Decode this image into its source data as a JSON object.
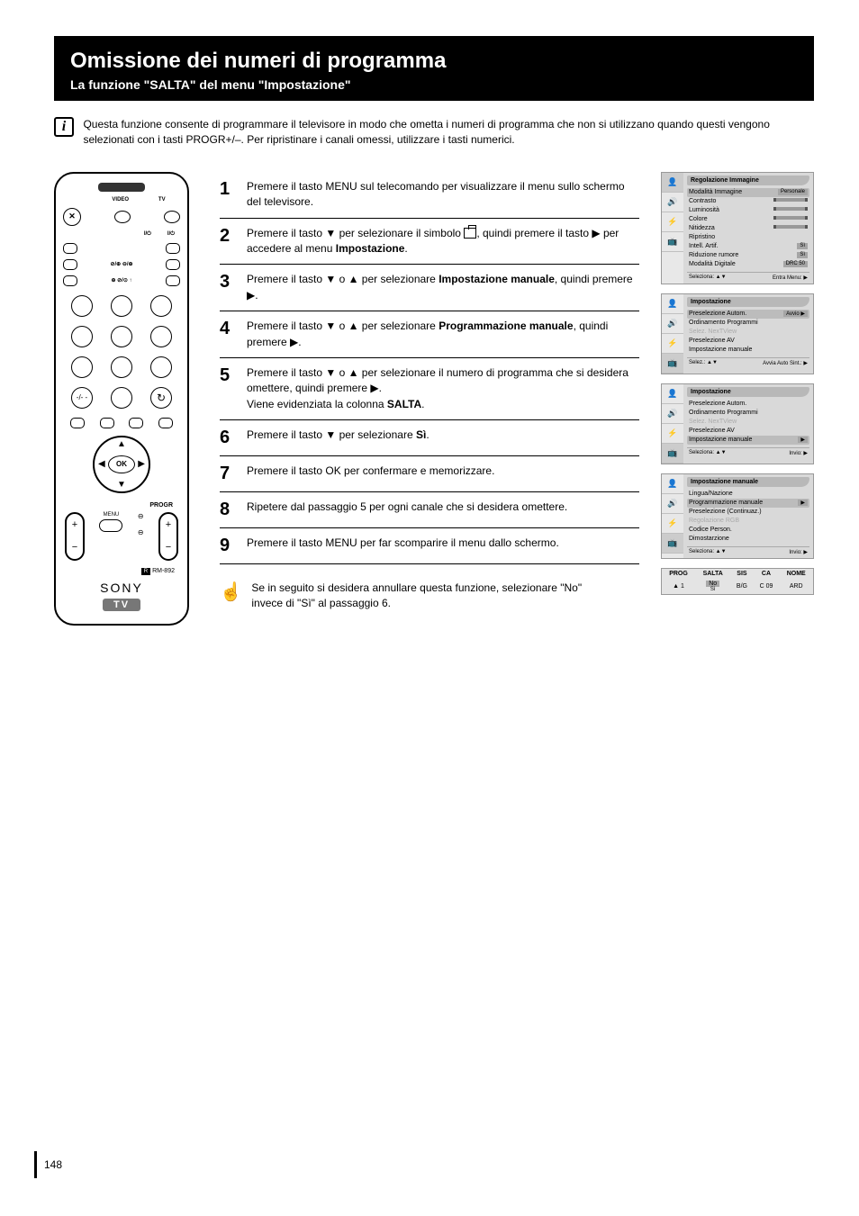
{
  "header": {
    "title": "Omissione dei numeri di programma",
    "subtitle": "La funzione \"SALTA\" del menu \"Impostazione\""
  },
  "intro": "Questa funzione consente di programmare il televisore in modo che ometta i numeri di programma che non si utilizzano quando questi vengono selezionati con i tasti PROGR+/–. Per ripristinare i canali omessi, utilizzare i tasti numerici.",
  "steps": [
    {
      "n": "1",
      "text": "Premere il tasto MENU sul telecomando per visualizzare il menu sullo schermo del televisore."
    },
    {
      "n": "2",
      "html": "Premere il tasto ▼ per selezionare il simbolo <ico>, quindi premere il tasto ▶ per accedere al menu <b>Impostazione</b>."
    },
    {
      "n": "3",
      "html": "Premere il tasto ▼ o ▲ per selezionare <b>Impostazione manuale</b>, quindi premere ▶."
    },
    {
      "n": "4",
      "html": "Premere il tasto ▼ o ▲ per selezionare <b>Programmazione manuale</b>, quindi premere ▶."
    },
    {
      "n": "5",
      "html": "Premere il tasto ▼ o ▲ per selezionare il numero di programma che si desidera omettere, quindi premere ▶.<br>Viene evidenziata la colonna <b>SALTA</b>."
    },
    {
      "n": "6",
      "html": "Premere il tasto ▼ per selezionare <b>Sì</b>."
    },
    {
      "n": "7",
      "text": "Premere il tasto OK per confermare e memorizzare."
    },
    {
      "n": "8",
      "text": "Ripetere dal passaggio 5 per ogni canale che si desidera omettere."
    },
    {
      "n": "9",
      "text": "Premere il tasto MENU per far scomparire il menu dallo schermo."
    }
  ],
  "note": "Se in seguito si desidera annullare questa funzione, selezionare \"No\" invece di \"Sì\" al passaggio 6.",
  "remote": {
    "labels": {
      "video": "VIDEO",
      "tv": "TV",
      "menu": "MENU",
      "progr": "PROGR",
      "model": "RM-892",
      "brand": "SONY",
      "badge": "TV",
      "ok": "OK"
    }
  },
  "osd": {
    "panel1": {
      "title": "Regolazione Immagine",
      "lines": [
        {
          "l": "Modalità Immagine",
          "v": "Personale",
          "hi": true
        },
        {
          "l": "Contrasto",
          "slider": true
        },
        {
          "l": "Luminosità",
          "slider": true
        },
        {
          "l": "Colore",
          "slider": true
        },
        {
          "l": "Nitidezza",
          "slider": true
        },
        {
          "l": "Ripristino"
        },
        {
          "l": "Intell. Artif.",
          "v": "Sì"
        },
        {
          "l": "Riduzione rumore",
          "v": "Sì"
        },
        {
          "l": "Modalità Digitale",
          "v": "DRC 50"
        }
      ],
      "foot_l": "Seleziona: ▲▼",
      "foot_r": "Entra Menu: ▶"
    },
    "panel2": {
      "title": "Impostazione",
      "lines": [
        {
          "l": "Preselezione Autom.",
          "v": "Avvio ▶",
          "hi": true
        },
        {
          "l": "Ordinamento Programmi"
        },
        {
          "l": "Selez. NexTView",
          "dim": true
        },
        {
          "l": "Preselezione AV"
        },
        {
          "l": "Impostazione manuale"
        }
      ],
      "foot_l": "Selez.: ▲▼",
      "foot_r": "Avvia Auto Sint.: ▶"
    },
    "panel3": {
      "title": "Impostazione",
      "lines": [
        {
          "l": "Preselezione Autom."
        },
        {
          "l": "Ordinamento Programmi"
        },
        {
          "l": "Selez. NexTView",
          "dim": true
        },
        {
          "l": "Preselezione AV"
        },
        {
          "l": "Impostazione manuale",
          "v": "▶",
          "hi": true
        }
      ],
      "foot_l": "Seleziona: ▲▼",
      "foot_r": "Invio: ▶"
    },
    "panel4": {
      "title": "Impostazione manuale",
      "lines": [
        {
          "l": "Lingua/Nazione"
        },
        {
          "l": "Programmazione manuale",
          "v": "▶",
          "hi": true
        },
        {
          "l": "Preselezione (Continuaz.)"
        },
        {
          "l": "Regolazione RGB",
          "dim": true
        },
        {
          "l": "Codice Person."
        },
        {
          "l": "Dimostarzione"
        }
      ],
      "foot_l": "Seleziona: ▲▼",
      "foot_r": "Invio: ▶"
    },
    "table": {
      "cols": [
        "PROG",
        "SALTA",
        "SIS",
        "CA",
        "NOME"
      ],
      "row": {
        "prog": "▲ 1",
        "salta_no": "No",
        "salta_si": "Sì",
        "sis": "B/G",
        "ca": "C 09",
        "nome": "ARD"
      }
    }
  },
  "page": "148",
  "colors": {
    "osd_bg": "#d9d9d9",
    "osd_hi": "#bcbcbc",
    "osd_dim": "#aaa",
    "tab_bg": "#e8e8e8"
  }
}
